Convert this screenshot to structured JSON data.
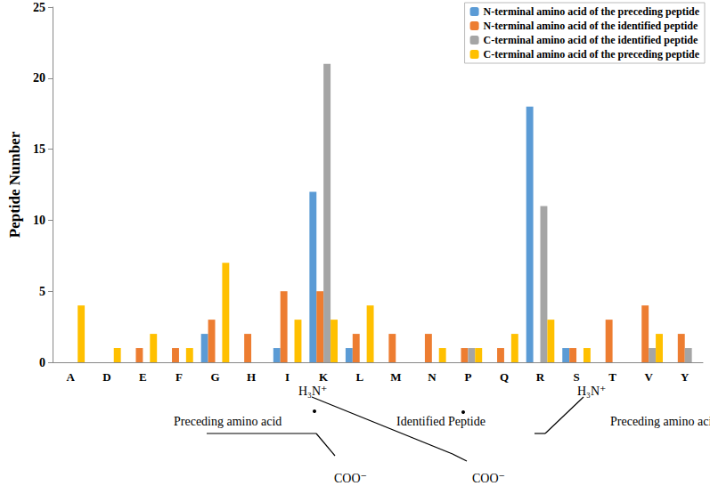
{
  "chart_data": {
    "type": "bar",
    "y_label": "Peptide Number",
    "categories": [
      "A",
      "D",
      "E",
      "F",
      "G",
      "H",
      "I",
      "K",
      "L",
      "M",
      "N",
      "P",
      "Q",
      "R",
      "S",
      "T",
      "V",
      "Y"
    ],
    "series": [
      {
        "name": "N-terminal amino acid of the preceding peptide",
        "color": "#5b9bd5",
        "values": [
          0,
          0,
          0,
          0,
          2,
          0,
          1,
          12,
          1,
          0,
          0,
          0,
          0,
          18,
          1,
          0,
          0,
          0
        ]
      },
      {
        "name": "N-terminal amino acid of the identified peptide",
        "color": "#ed7d31",
        "values": [
          0,
          0,
          1,
          1,
          3,
          2,
          5,
          5,
          2,
          2,
          2,
          1,
          1,
          0,
          1,
          3,
          4,
          2
        ]
      },
      {
        "name": "C-terminal amino acid of the identified peptide",
        "color": "#a5a5a5",
        "values": [
          0,
          0,
          0,
          0,
          0,
          0,
          0,
          21,
          0,
          0,
          0,
          1,
          0,
          11,
          0,
          0,
          1,
          1
        ]
      },
      {
        "name": "C-terminal amino acid of the preceding peptide",
        "color": "#ffc000",
        "values": [
          4,
          1,
          2,
          1,
          7,
          0,
          3,
          3,
          4,
          0,
          1,
          1,
          2,
          3,
          1,
          0,
          2,
          0
        ]
      }
    ],
    "ylim": [
      0,
      25
    ],
    "yticks": [
      0,
      5,
      10,
      15,
      20,
      25
    ],
    "grid": false,
    "legend": "upper right",
    "annotations": [
      "Preceding amino acid",
      "H₃N⁺",
      "Identified Peptide",
      "COO⁻",
      "H₃N⁺",
      "COO⁻",
      "Preceding amino acid"
    ]
  }
}
